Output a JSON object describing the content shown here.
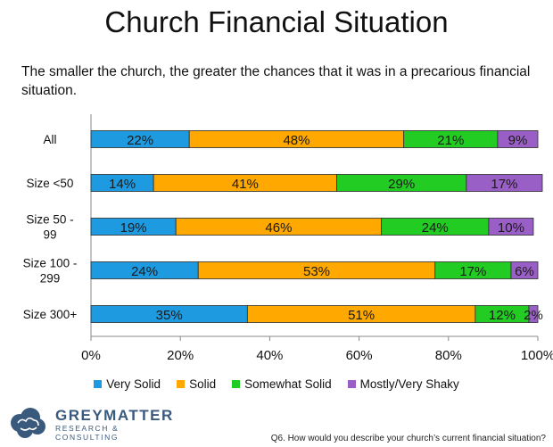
{
  "title": "Church Financial Situation",
  "subtitle": "The smaller the church, the greater the chances that it was in a precarious financial situation.",
  "footer_question": "Q6. How would you describe your church’s current financial situation?",
  "logo": {
    "name": "GREYMATTER",
    "tagline": "RESEARCH & CONSULTING",
    "icon": "brain-cloud-icon"
  },
  "colors": {
    "very_solid": "#1e9be0",
    "solid": "#ffa800",
    "somewhat_solid": "#22cc22",
    "shaky": "#9a5fc6"
  },
  "chart_data": {
    "type": "bar",
    "orientation": "horizontal",
    "stacked": true,
    "categories": [
      "All",
      "Size <50",
      "Size 50 - 99",
      "Size 100 - 299",
      "Size 300+"
    ],
    "category_lines": [
      [
        "All"
      ],
      [
        "Size <50"
      ],
      [
        "Size 50 -",
        "99"
      ],
      [
        "Size 100 -",
        "299"
      ],
      [
        "Size 300+"
      ]
    ],
    "series": [
      {
        "name": "Very Solid",
        "color": "#1e9be0",
        "values": [
          22,
          14,
          19,
          24,
          35
        ],
        "labels": [
          "22%",
          "14%",
          "19%",
          "24%",
          "35%"
        ]
      },
      {
        "name": "Solid",
        "color": "#ffa800",
        "values": [
          48,
          41,
          46,
          53,
          51
        ],
        "labels": [
          "48%",
          "41%",
          "46%",
          "53%",
          "51%"
        ]
      },
      {
        "name": "Somewhat Solid",
        "color": "#22cc22",
        "values": [
          21,
          29,
          24,
          17,
          12
        ],
        "labels": [
          "21%",
          "29%",
          "24%",
          "17%",
          "12%"
        ]
      },
      {
        "name": "Mostly/Very Shaky",
        "color": "#9a5fc6",
        "values": [
          9,
          17,
          10,
          6,
          2
        ],
        "labels": [
          "9%",
          "17%",
          "10%",
          "6%",
          "2%"
        ]
      }
    ],
    "xlim": [
      0,
      100
    ],
    "xticks": [
      "0%",
      "20%",
      "40%",
      "60%",
      "80%",
      "100%"
    ],
    "grid": false,
    "legend_position": "bottom"
  }
}
